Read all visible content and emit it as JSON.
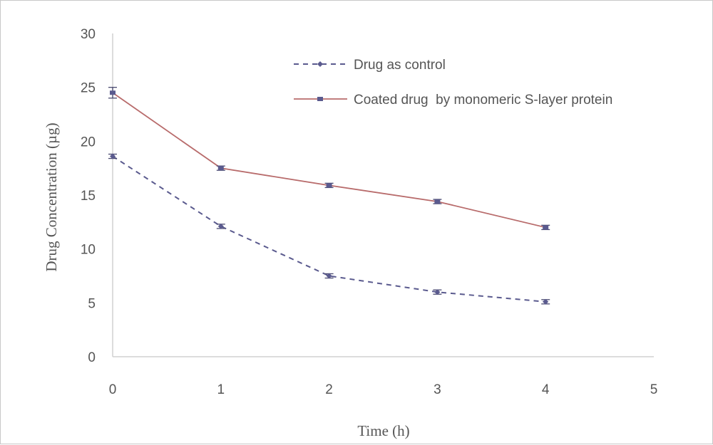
{
  "chart_data": {
    "type": "line",
    "xlabel": "Time (h)",
    "ylabel": "Drug Concentration (µg)",
    "xlim": [
      0,
      5
    ],
    "ylim": [
      0,
      30
    ],
    "x_ticks": [
      0,
      1,
      2,
      3,
      4,
      5
    ],
    "y_ticks": [
      0,
      5,
      10,
      15,
      20,
      25,
      30
    ],
    "grid": false,
    "legend_position": "top-right",
    "x": [
      0,
      1,
      2,
      3,
      4
    ],
    "series": [
      {
        "name": "Drug as control",
        "values": [
          18.6,
          12.1,
          7.5,
          6.0,
          5.1
        ],
        "errors": [
          0.2,
          0.2,
          0.2,
          0.2,
          0.2
        ],
        "color": "#5a5a8e",
        "line_style": "dashed",
        "marker": "diamond"
      },
      {
        "name": "Coated drug  by monomeric S-layer protein",
        "values": [
          24.5,
          17.5,
          15.9,
          14.4,
          12.0
        ],
        "errors": [
          0.5,
          0.2,
          0.2,
          0.2,
          0.2
        ],
        "color": "#b86b6b",
        "marker_color": "#5a5a8e",
        "line_style": "solid",
        "marker": "square"
      }
    ]
  }
}
